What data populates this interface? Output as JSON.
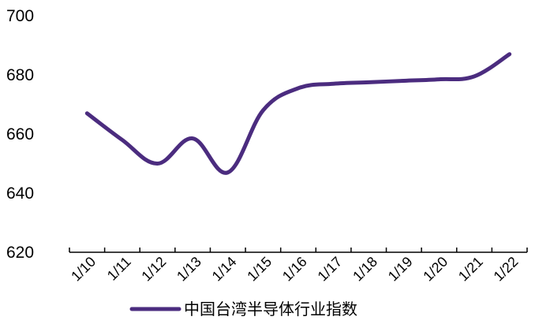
{
  "chart_data": {
    "type": "line",
    "categories": [
      "1/10",
      "1/11",
      "1/12",
      "1/13",
      "1/14",
      "1/15",
      "1/16",
      "1/17",
      "1/18",
      "1/19",
      "1/20",
      "1/21",
      "1/22"
    ],
    "series": [
      {
        "name": "中国台湾半导体行业指数",
        "values": [
          667,
          658,
          650,
          658.5,
          647,
          668,
          675.5,
          677,
          677.5,
          678,
          678.5,
          679.5,
          687
        ],
        "color": "#4B2C7F"
      }
    ],
    "ylim": [
      620,
      700
    ],
    "yticks": [
      620,
      640,
      660,
      680,
      700
    ],
    "grid": false,
    "legend": "bottom",
    "title": "",
    "xlabel": "",
    "ylabel": ""
  }
}
